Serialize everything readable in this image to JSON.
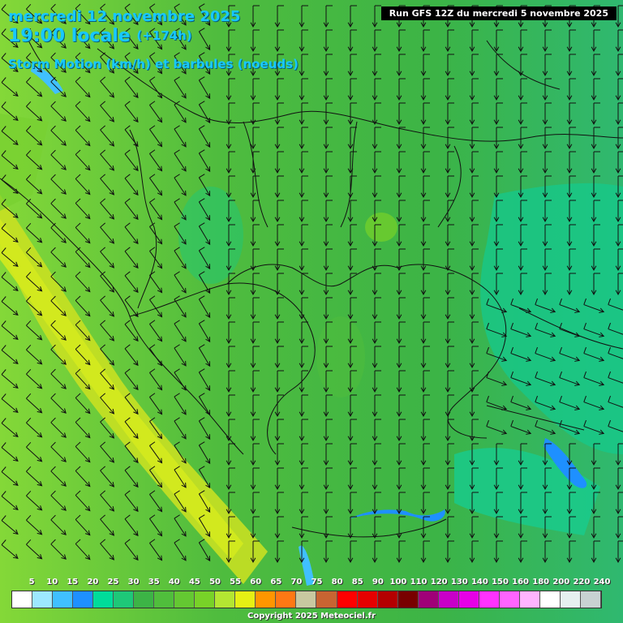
{
  "header": {
    "line1": "mercredi 12 novembre 2025",
    "time": "19:00 locale",
    "lead": "(+174h)",
    "subtitle": "Storm Motion (km/h) et barbules (noeuds)",
    "run": "Run GFS 12Z du mercredi 5 novembre 2025"
  },
  "legend": {
    "labels": [
      "5",
      "10",
      "15",
      "20",
      "25",
      "30",
      "35",
      "40",
      "45",
      "50",
      "55",
      "60",
      "65",
      "70",
      "75",
      "80",
      "85",
      "90",
      "100",
      "110",
      "120",
      "130",
      "140",
      "150",
      "160",
      "180",
      "200",
      "220",
      "240"
    ],
    "colors": [
      "#ffffff",
      "#9de8ff",
      "#40c0ff",
      "#1e90ff",
      "#00dc9a",
      "#1ec878",
      "#3cb446",
      "#50be3c",
      "#64c832",
      "#78d228",
      "#b4e632",
      "#e6f014",
      "#ff9600",
      "#ff7814",
      "#c8c8a0",
      "#c86432",
      "#ff0000",
      "#e60000",
      "#b40000",
      "#780000",
      "#a00078",
      "#c800c8",
      "#e600e6",
      "#ff32ff",
      "#ff64ff",
      "#ffb4ff",
      "#ffffff",
      "#e6f0f0",
      "#c8d2d2"
    ]
  },
  "footer": {
    "copyright": "Copyright 2025 Meteociel.fr"
  }
}
